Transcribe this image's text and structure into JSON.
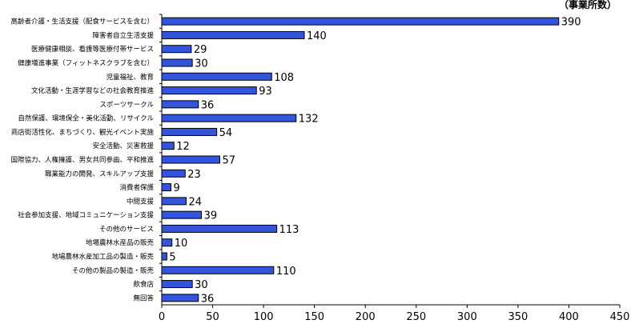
{
  "chart_data": {
    "type": "bar",
    "orientation": "horizontal",
    "unit_label": "（事業所数）",
    "categories": [
      "高齢者介護・生活支援（配食サービスを含む）",
      "障害者自立生活支援",
      "医療健康相談、看護等医療付帯サービス",
      "健康増進事業（フィットネスクラブを含む）",
      "児童福祉、教育",
      "文化活動・生涯学習などの社会教育推進",
      "スポーツサークル",
      "自然保護、環境保全・美化活動、リサイクル",
      "商店街活性化、まちづくり、観光イベント実施",
      "安全活動、災害救援",
      "国際協力、人権擁護、男女共同参画、平和推進",
      "職業能力の開発、スキルアップ支援",
      "消費者保護",
      "中間支援",
      "社会参加支援、地域コミュニケーション支援",
      "その他のサービス",
      "地場農林水産品の販売",
      "地場農林水産加工品の製造・販売",
      "その他の製品の製造・販売",
      "飲食店",
      "無回答"
    ],
    "values": [
      390,
      140,
      29,
      30,
      108,
      93,
      36,
      132,
      54,
      12,
      57,
      23,
      9,
      24,
      39,
      113,
      10,
      5,
      110,
      30,
      36
    ],
    "xlim": [
      0,
      450
    ],
    "xticks": [
      0,
      50,
      100,
      150,
      200,
      250,
      300,
      350,
      400,
      450
    ],
    "bar_color": "#3355dd",
    "bar_edge_color": "#000000",
    "grid": false
  }
}
